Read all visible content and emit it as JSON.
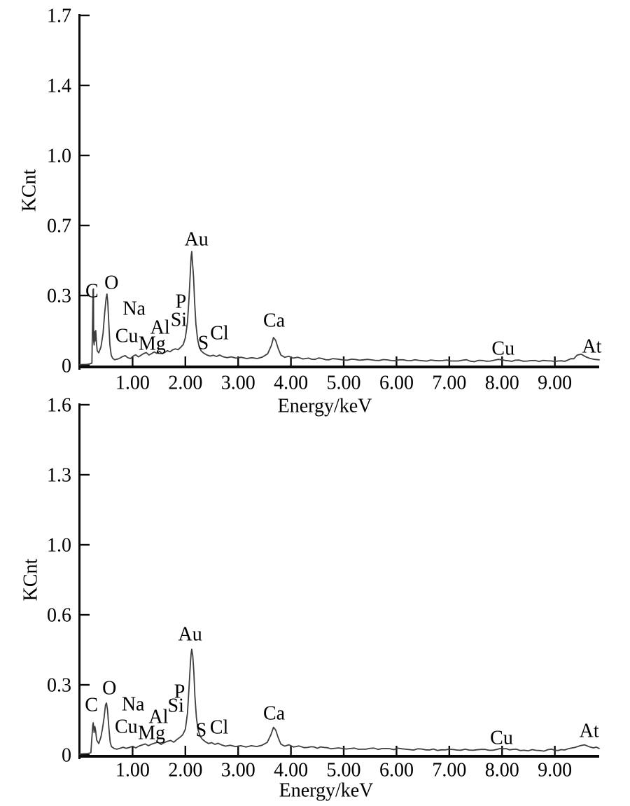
{
  "figure": {
    "background": "#ffffff",
    "text_color": "#000000",
    "axis_color": "#0a0a0a",
    "curve_color": "#3f3f3f"
  },
  "chart_data": [
    {
      "id": "eds-spectrum-top",
      "type": "line",
      "xlabel": "Energy/keV",
      "ylabel": "KCnt",
      "xlim": [
        0,
        9.84
      ],
      "ylim": [
        0,
        1.7
      ],
      "grid": false,
      "legend": null,
      "x_ticks": [
        {
          "v": 1,
          "label": "1.00"
        },
        {
          "v": 2,
          "label": "2.00"
        },
        {
          "v": 3,
          "label": "3.00"
        },
        {
          "v": 4,
          "label": "4.00"
        },
        {
          "v": 5,
          "label": "5.00"
        },
        {
          "v": 6,
          "label": "6.00"
        },
        {
          "v": 7,
          "label": "7.00"
        },
        {
          "v": 8,
          "label": "8.00"
        },
        {
          "v": 9,
          "label": "9.00"
        }
      ],
      "y_tick_labels": [
        "0",
        "0.3",
        "0.7",
        "1.0",
        "1.4",
        "1.7"
      ],
      "y_ticks_equally_spaced": true,
      "element_labels": [
        {
          "text": "C",
          "x": 0.23,
          "y": 0.364
        },
        {
          "text": "O",
          "x": 0.6,
          "y": 0.405
        },
        {
          "text": "Na",
          "x": 1.03,
          "y": 0.279
        },
        {
          "text": "Cu",
          "x": 0.89,
          "y": 0.146
        },
        {
          "text": "Mg",
          "x": 1.37,
          "y": 0.109
        },
        {
          "text": "Al",
          "x": 1.52,
          "y": 0.187
        },
        {
          "text": "Si",
          "x": 1.875,
          "y": 0.224
        },
        {
          "text": "P",
          "x": 1.915,
          "y": 0.313
        },
        {
          "text": "Au",
          "x": 2.21,
          "y": 0.615
        },
        {
          "text": "S",
          "x": 2.34,
          "y": 0.112
        },
        {
          "text": "Cl",
          "x": 2.645,
          "y": 0.16
        },
        {
          "text": "Ca",
          "x": 3.68,
          "y": 0.221
        },
        {
          "text": "Cu",
          "x": 8.02,
          "y": 0.085
        },
        {
          "text": "At",
          "x": 9.7,
          "y": 0.095
        }
      ],
      "points": [
        [
          0.0,
          0.004
        ],
        [
          0.06,
          0.005
        ],
        [
          0.12,
          0.005
        ],
        [
          0.18,
          0.007
        ],
        [
          0.23,
          0.012
        ],
        [
          0.25,
          0.368
        ],
        [
          0.258,
          0.372
        ],
        [
          0.263,
          0.12
        ],
        [
          0.272,
          0.1
        ],
        [
          0.282,
          0.165
        ],
        [
          0.292,
          0.12
        ],
        [
          0.302,
          0.17
        ],
        [
          0.315,
          0.11
        ],
        [
          0.33,
          0.072
        ],
        [
          0.36,
          0.062
        ],
        [
          0.4,
          0.09
        ],
        [
          0.44,
          0.155
        ],
        [
          0.47,
          0.25
        ],
        [
          0.5,
          0.33
        ],
        [
          0.515,
          0.347
        ],
        [
          0.53,
          0.305
        ],
        [
          0.55,
          0.2
        ],
        [
          0.57,
          0.1
        ],
        [
          0.595,
          0.05
        ],
        [
          0.62,
          0.036
        ],
        [
          0.66,
          0.028
        ],
        [
          0.71,
          0.031
        ],
        [
          0.76,
          0.036
        ],
        [
          0.81,
          0.044
        ],
        [
          0.86,
          0.048
        ],
        [
          0.91,
          0.038
        ],
        [
          0.96,
          0.034
        ],
        [
          1.01,
          0.046
        ],
        [
          1.06,
          0.052
        ],
        [
          1.11,
          0.042
        ],
        [
          1.16,
          0.05
        ],
        [
          1.21,
          0.058
        ],
        [
          1.26,
          0.063
        ],
        [
          1.31,
          0.051
        ],
        [
          1.36,
          0.058
        ],
        [
          1.41,
          0.066
        ],
        [
          1.46,
          0.059
        ],
        [
          1.51,
          0.069
        ],
        [
          1.56,
          0.057
        ],
        [
          1.61,
          0.064
        ],
        [
          1.66,
          0.072
        ],
        [
          1.71,
          0.067
        ],
        [
          1.76,
          0.076
        ],
        [
          1.81,
          0.081
        ],
        [
          1.86,
          0.077
        ],
        [
          1.91,
          0.088
        ],
        [
          1.96,
          0.102
        ],
        [
          2.0,
          0.135
        ],
        [
          2.04,
          0.21
        ],
        [
          2.07,
          0.33
        ],
        [
          2.095,
          0.46
        ],
        [
          2.11,
          0.53
        ],
        [
          2.12,
          0.554
        ],
        [
          2.135,
          0.5
        ],
        [
          2.155,
          0.43
        ],
        [
          2.175,
          0.31
        ],
        [
          2.2,
          0.2
        ],
        [
          2.23,
          0.13
        ],
        [
          2.26,
          0.092
        ],
        [
          2.3,
          0.071
        ],
        [
          2.35,
          0.06
        ],
        [
          2.41,
          0.051
        ],
        [
          2.47,
          0.046
        ],
        [
          2.53,
          0.05
        ],
        [
          2.59,
          0.044
        ],
        [
          2.65,
          0.051
        ],
        [
          2.71,
          0.043
        ],
        [
          2.79,
          0.038
        ],
        [
          2.87,
          0.042
        ],
        [
          2.96,
          0.036
        ],
        [
          3.06,
          0.04
        ],
        [
          3.16,
          0.034
        ],
        [
          3.26,
          0.038
        ],
        [
          3.36,
          0.034
        ],
        [
          3.46,
          0.041
        ],
        [
          3.56,
          0.057
        ],
        [
          3.63,
          0.098
        ],
        [
          3.67,
          0.136
        ],
        [
          3.71,
          0.122
        ],
        [
          3.76,
          0.082
        ],
        [
          3.81,
          0.051
        ],
        [
          3.88,
          0.04
        ],
        [
          3.96,
          0.045
        ],
        [
          4.04,
          0.036
        ],
        [
          4.13,
          0.04
        ],
        [
          4.23,
          0.032
        ],
        [
          4.33,
          0.036
        ],
        [
          4.46,
          0.03
        ],
        [
          4.59,
          0.034
        ],
        [
          4.72,
          0.028
        ],
        [
          4.86,
          0.032
        ],
        [
          5.0,
          0.027
        ],
        [
          5.15,
          0.031
        ],
        [
          5.3,
          0.026
        ],
        [
          5.45,
          0.03
        ],
        [
          5.6,
          0.025
        ],
        [
          5.75,
          0.029
        ],
        [
          5.9,
          0.024
        ],
        [
          6.05,
          0.028
        ],
        [
          6.2,
          0.024
        ],
        [
          6.35,
          0.028
        ],
        [
          6.5,
          0.023
        ],
        [
          6.65,
          0.027
        ],
        [
          6.8,
          0.023
        ],
        [
          6.95,
          0.027
        ],
        [
          7.1,
          0.022
        ],
        [
          7.25,
          0.026
        ],
        [
          7.4,
          0.021
        ],
        [
          7.55,
          0.025
        ],
        [
          7.7,
          0.021
        ],
        [
          7.85,
          0.026
        ],
        [
          8.0,
          0.028
        ],
        [
          8.12,
          0.023
        ],
        [
          8.25,
          0.026
        ],
        [
          8.4,
          0.021
        ],
        [
          8.55,
          0.024
        ],
        [
          8.7,
          0.02
        ],
        [
          8.85,
          0.023
        ],
        [
          9.0,
          0.02
        ],
        [
          9.12,
          0.023
        ],
        [
          9.25,
          0.027
        ],
        [
          9.36,
          0.033
        ],
        [
          9.42,
          0.05
        ],
        [
          9.5,
          0.055
        ],
        [
          9.58,
          0.043
        ],
        [
          9.66,
          0.035
        ],
        [
          9.75,
          0.03
        ],
        [
          9.84,
          0.028
        ]
      ]
    },
    {
      "id": "eds-spectrum-bottom",
      "type": "line",
      "xlabel": "Energy/keV",
      "ylabel": "KCnt",
      "xlim": [
        0,
        9.84
      ],
      "ylim": [
        0,
        1.6
      ],
      "grid": false,
      "legend": null,
      "x_ticks": [
        {
          "v": 1,
          "label": "1.00"
        },
        {
          "v": 2,
          "label": "2.00"
        },
        {
          "v": 3,
          "label": "3.00"
        },
        {
          "v": 4,
          "label": "4.00"
        },
        {
          "v": 5,
          "label": "5.00"
        },
        {
          "v": 6,
          "label": "6.00"
        },
        {
          "v": 7,
          "label": "7.00"
        },
        {
          "v": 8,
          "label": "8.00"
        },
        {
          "v": 9,
          "label": "9.00"
        }
      ],
      "y_tick_labels": [
        "0",
        "0.3",
        "0.6",
        "1.0",
        "1.3",
        "1.6"
      ],
      "y_ticks_equally_spaced": true,
      "element_labels": [
        {
          "text": "C",
          "x": 0.22,
          "y": 0.23
        },
        {
          "text": "O",
          "x": 0.56,
          "y": 0.307
        },
        {
          "text": "Na",
          "x": 1.01,
          "y": 0.234
        },
        {
          "text": "Cu",
          "x": 0.88,
          "y": 0.131
        },
        {
          "text": "Mg",
          "x": 1.36,
          "y": 0.102
        },
        {
          "text": "Al",
          "x": 1.49,
          "y": 0.176
        },
        {
          "text": "Si",
          "x": 1.82,
          "y": 0.227
        },
        {
          "text": "P",
          "x": 1.89,
          "y": 0.291
        },
        {
          "text": "Au",
          "x": 2.09,
          "y": 0.554
        },
        {
          "text": "S",
          "x": 2.3,
          "y": 0.115
        },
        {
          "text": "Cl",
          "x": 2.64,
          "y": 0.128
        },
        {
          "text": "Ca",
          "x": 3.68,
          "y": 0.192
        },
        {
          "text": "Cu",
          "x": 7.99,
          "y": 0.08
        },
        {
          "text": "At",
          "x": 9.65,
          "y": 0.112
        }
      ],
      "points": [
        [
          0.0,
          0.004
        ],
        [
          0.08,
          0.005
        ],
        [
          0.15,
          0.006
        ],
        [
          0.21,
          0.01
        ],
        [
          0.245,
          0.135
        ],
        [
          0.255,
          0.147
        ],
        [
          0.27,
          0.102
        ],
        [
          0.285,
          0.13
        ],
        [
          0.3,
          0.112
        ],
        [
          0.32,
          0.068
        ],
        [
          0.36,
          0.052
        ],
        [
          0.4,
          0.082
        ],
        [
          0.43,
          0.12
        ],
        [
          0.46,
          0.17
        ],
        [
          0.487,
          0.228
        ],
        [
          0.505,
          0.237
        ],
        [
          0.525,
          0.205
        ],
        [
          0.55,
          0.125
        ],
        [
          0.575,
          0.058
        ],
        [
          0.6,
          0.038
        ],
        [
          0.65,
          0.029
        ],
        [
          0.7,
          0.026
        ],
        [
          0.76,
          0.03
        ],
        [
          0.82,
          0.035
        ],
        [
          0.88,
          0.03
        ],
        [
          0.94,
          0.034
        ],
        [
          1.0,
          0.039
        ],
        [
          1.06,
          0.032
        ],
        [
          1.12,
          0.04
        ],
        [
          1.18,
          0.045
        ],
        [
          1.24,
          0.05
        ],
        [
          1.3,
          0.042
        ],
        [
          1.36,
          0.049
        ],
        [
          1.42,
          0.054
        ],
        [
          1.48,
          0.058
        ],
        [
          1.54,
          0.048
        ],
        [
          1.6,
          0.056
        ],
        [
          1.66,
          0.062
        ],
        [
          1.72,
          0.066
        ],
        [
          1.78,
          0.058
        ],
        [
          1.84,
          0.07
        ],
        [
          1.9,
          0.081
        ],
        [
          1.95,
          0.092
        ],
        [
          2.0,
          0.117
        ],
        [
          2.04,
          0.19
        ],
        [
          2.07,
          0.31
        ],
        [
          2.095,
          0.42
        ],
        [
          2.11,
          0.465
        ],
        [
          2.12,
          0.483
        ],
        [
          2.14,
          0.452
        ],
        [
          2.16,
          0.38
        ],
        [
          2.18,
          0.27
        ],
        [
          2.21,
          0.17
        ],
        [
          2.24,
          0.115
        ],
        [
          2.28,
          0.086
        ],
        [
          2.32,
          0.072
        ],
        [
          2.38,
          0.06
        ],
        [
          2.44,
          0.052
        ],
        [
          2.5,
          0.056
        ],
        [
          2.56,
          0.048
        ],
        [
          2.62,
          0.053
        ],
        [
          2.68,
          0.046
        ],
        [
          2.76,
          0.04
        ],
        [
          2.85,
          0.044
        ],
        [
          2.95,
          0.038
        ],
        [
          3.05,
          0.042
        ],
        [
          3.15,
          0.036
        ],
        [
          3.25,
          0.042
        ],
        [
          3.35,
          0.038
        ],
        [
          3.45,
          0.044
        ],
        [
          3.55,
          0.057
        ],
        [
          3.62,
          0.092
        ],
        [
          3.67,
          0.126
        ],
        [
          3.71,
          0.114
        ],
        [
          3.76,
          0.078
        ],
        [
          3.81,
          0.049
        ],
        [
          3.88,
          0.04
        ],
        [
          3.96,
          0.046
        ],
        [
          4.05,
          0.036
        ],
        [
          4.15,
          0.041
        ],
        [
          4.25,
          0.033
        ],
        [
          4.38,
          0.037
        ],
        [
          4.5,
          0.03
        ],
        [
          4.63,
          0.034
        ],
        [
          4.76,
          0.028
        ],
        [
          4.9,
          0.032
        ],
        [
          5.05,
          0.027
        ],
        [
          5.2,
          0.031
        ],
        [
          5.35,
          0.026
        ],
        [
          5.5,
          0.03
        ],
        [
          5.65,
          0.025
        ],
        [
          5.8,
          0.029
        ],
        [
          5.95,
          0.024
        ],
        [
          6.1,
          0.028
        ],
        [
          6.25,
          0.024
        ],
        [
          6.4,
          0.028
        ],
        [
          6.55,
          0.023
        ],
        [
          6.7,
          0.027
        ],
        [
          6.85,
          0.023
        ],
        [
          7.0,
          0.026
        ],
        [
          7.15,
          0.022
        ],
        [
          7.3,
          0.026
        ],
        [
          7.45,
          0.021
        ],
        [
          7.6,
          0.025
        ],
        [
          7.75,
          0.021
        ],
        [
          7.9,
          0.025
        ],
        [
          8.02,
          0.028
        ],
        [
          8.14,
          0.023
        ],
        [
          8.27,
          0.026
        ],
        [
          8.42,
          0.021
        ],
        [
          8.57,
          0.024
        ],
        [
          8.72,
          0.02
        ],
        [
          8.87,
          0.024
        ],
        [
          9.0,
          0.021
        ],
        [
          9.12,
          0.024
        ],
        [
          9.25,
          0.028
        ],
        [
          9.38,
          0.034
        ],
        [
          9.48,
          0.042
        ],
        [
          9.56,
          0.046
        ],
        [
          9.64,
          0.038
        ],
        [
          9.73,
          0.032
        ],
        [
          9.84,
          0.029
        ]
      ]
    }
  ]
}
